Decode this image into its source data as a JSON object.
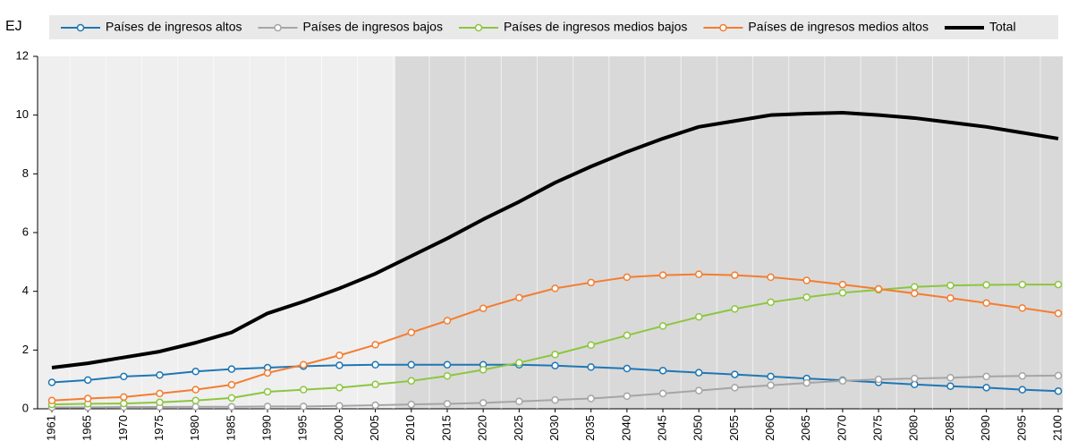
{
  "chart_data": {
    "type": "line",
    "y_axis_label": "EJ",
    "categories": [
      "1961",
      "1965",
      "1970",
      "1975",
      "1980",
      "1985",
      "1990",
      "1995",
      "2000",
      "2005",
      "2010",
      "2015",
      "2020",
      "2025",
      "2030",
      "2035",
      "2040",
      "2045",
      "2050",
      "2055",
      "2060",
      "2065",
      "2070",
      "2075",
      "2080",
      "2085",
      "2090",
      "2095",
      "2100"
    ],
    "ylim": [
      0,
      12
    ],
    "yticks": [
      0,
      2,
      4,
      6,
      8,
      10,
      12
    ],
    "legend": "top",
    "series": [
      {
        "name": "Países de ingresos altos",
        "color": "#1f77b4",
        "markers": true,
        "values": [
          0.9,
          0.98,
          1.1,
          1.15,
          1.27,
          1.35,
          1.4,
          1.45,
          1.48,
          1.5,
          1.5,
          1.5,
          1.5,
          1.5,
          1.47,
          1.42,
          1.37,
          1.3,
          1.23,
          1.17,
          1.1,
          1.03,
          0.97,
          0.9,
          0.83,
          0.77,
          0.72,
          0.65,
          0.6
        ]
      },
      {
        "name": "Países de ingresos bajos",
        "color": "#a5a5a5",
        "markers": true,
        "values": [
          0.05,
          0.05,
          0.06,
          0.06,
          0.07,
          0.07,
          0.08,
          0.08,
          0.1,
          0.12,
          0.15,
          0.17,
          0.2,
          0.25,
          0.3,
          0.35,
          0.43,
          0.52,
          0.62,
          0.72,
          0.8,
          0.88,
          0.95,
          1.0,
          1.03,
          1.06,
          1.1,
          1.12,
          1.13
        ]
      },
      {
        "name": "Países de ingresos medios bajos",
        "color": "#8cc63f",
        "markers": true,
        "values": [
          0.15,
          0.17,
          0.18,
          0.22,
          0.28,
          0.37,
          0.58,
          0.65,
          0.72,
          0.83,
          0.95,
          1.12,
          1.33,
          1.57,
          1.85,
          2.17,
          2.5,
          2.82,
          3.13,
          3.4,
          3.63,
          3.8,
          3.95,
          4.05,
          4.15,
          4.2,
          4.22,
          4.23,
          4.23
        ]
      },
      {
        "name": "Países de ingresos medios altos",
        "color": "#f47d30",
        "markers": true,
        "values": [
          0.28,
          0.35,
          0.4,
          0.52,
          0.65,
          0.82,
          1.22,
          1.5,
          1.82,
          2.18,
          2.6,
          3.0,
          3.42,
          3.78,
          4.1,
          4.3,
          4.48,
          4.55,
          4.58,
          4.55,
          4.48,
          4.37,
          4.23,
          4.08,
          3.93,
          3.77,
          3.6,
          3.43,
          3.25
        ]
      },
      {
        "name": "Total",
        "color": "#000000",
        "markers": false,
        "values": [
          1.4,
          1.55,
          1.75,
          1.95,
          2.25,
          2.6,
          3.25,
          3.65,
          4.1,
          4.6,
          5.2,
          5.8,
          6.45,
          7.05,
          7.7,
          8.25,
          8.75,
          9.2,
          9.6,
          9.8,
          10.0,
          10.05,
          10.08,
          10.0,
          9.9,
          9.75,
          9.6,
          9.4,
          9.2
        ]
      }
    ]
  }
}
